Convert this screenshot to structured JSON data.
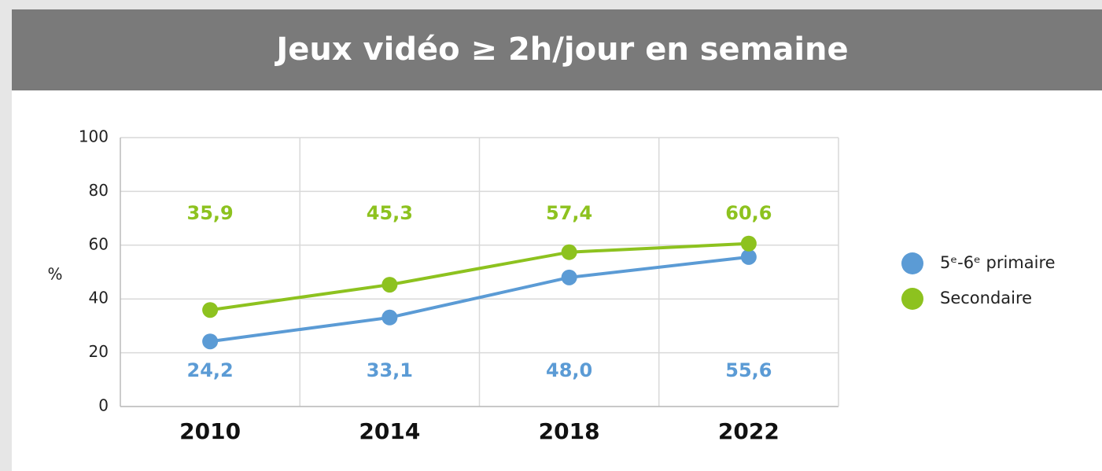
{
  "chart_data": {
    "type": "line",
    "title": "Jeux vidéo  ≥ 2h/jour en semaine",
    "y_label": "%",
    "categories": [
      "2010",
      "2014",
      "2018",
      "2022"
    ],
    "series": [
      {
        "name": "5ᵉ-6ᵉ primaire",
        "color": "#5b9bd5",
        "values": [
          24.2,
          33.1,
          48.0,
          55.6
        ],
        "value_labels": [
          "24,2",
          "33,1",
          "48,0",
          "55,6"
        ]
      },
      {
        "name": "Secondaire",
        "color": "#8dc21f",
        "values": [
          35.9,
          45.3,
          57.4,
          60.6
        ],
        "value_labels": [
          "35,9",
          "45,3",
          "57,4",
          "60,6"
        ]
      }
    ],
    "ylim": [
      0,
      100
    ],
    "yticks": [
      0,
      20,
      40,
      60,
      80,
      100
    ],
    "grid": true,
    "legend": "right"
  }
}
